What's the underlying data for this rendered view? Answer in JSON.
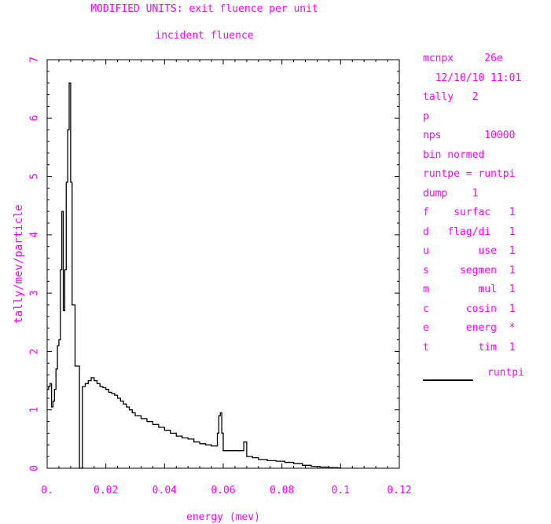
{
  "chart_data": {
    "type": "line",
    "title_lines": [
      "MODIFIED UNITS: exit fluence per unit",
      "incident fluence"
    ],
    "xlabel": "energy (mev)",
    "ylabel": "tally/mev/particle",
    "xlim": [
      0,
      0.12
    ],
    "ylim": [
      0,
      7
    ],
    "xticks": [
      0,
      0.02,
      0.04,
      0.06,
      0.08,
      0.1,
      0.12
    ],
    "xtick_labels": [
      "0.",
      "0.02",
      "0.04",
      "0.06",
      "0.08",
      "0.1",
      "0.12"
    ],
    "yticks": [
      0,
      1,
      2,
      3,
      4,
      5,
      6,
      7
    ],
    "ytick_labels": [
      "0",
      "1",
      "2",
      "3",
      "4",
      "5",
      "6",
      "7"
    ],
    "grid": false,
    "line_color": "#000000",
    "text_color": "#ff00ff",
    "series": [
      {
        "name": "runtpi",
        "step": true,
        "x": [
          0,
          0.0005,
          0.001,
          0.0015,
          0.002,
          0.0025,
          0.003,
          0.0035,
          0.004,
          0.0045,
          0.005,
          0.0055,
          0.006,
          0.0065,
          0.007,
          0.0075,
          0.008,
          0.0085,
          0.009,
          0.0095,
          0.01,
          0.0105,
          0.011,
          0.012,
          0.013,
          0.014,
          0.015,
          0.016,
          0.017,
          0.018,
          0.019,
          0.02,
          0.021,
          0.022,
          0.023,
          0.024,
          0.025,
          0.026,
          0.027,
          0.028,
          0.029,
          0.03,
          0.032,
          0.034,
          0.036,
          0.038,
          0.04,
          0.042,
          0.044,
          0.046,
          0.048,
          0.05,
          0.052,
          0.054,
          0.056,
          0.058,
          0.0585,
          0.059,
          0.0595,
          0.06,
          0.062,
          0.064,
          0.066,
          0.067,
          0.068,
          0.07,
          0.072,
          0.075,
          0.078,
          0.081,
          0.084,
          0.087,
          0.09,
          0.093,
          0.096,
          0.099,
          0.1
        ],
        "y": [
          1.35,
          1.4,
          1.45,
          1.05,
          1.15,
          1.35,
          1.7,
          2.1,
          2.2,
          3.4,
          4.4,
          2.7,
          3.4,
          4.9,
          5.8,
          6.6,
          4.9,
          2.8,
          2.8,
          1.75,
          1.75,
          1.75,
          0,
          1.4,
          1.45,
          1.5,
          1.55,
          1.5,
          1.45,
          1.4,
          1.38,
          1.35,
          1.3,
          1.28,
          1.25,
          1.2,
          1.15,
          1.1,
          1.05,
          1.0,
          0.95,
          0.9,
          0.85,
          0.8,
          0.75,
          0.7,
          0.65,
          0.6,
          0.55,
          0.52,
          0.5,
          0.45,
          0.42,
          0.4,
          0.38,
          0.6,
          0.9,
          0.95,
          0.6,
          0.3,
          0.3,
          0.3,
          0.3,
          0.45,
          0.2,
          0.18,
          0.15,
          0.13,
          0.12,
          0.1,
          0.08,
          0.05,
          0.03,
          0.02,
          0.01,
          0.005,
          0
        ]
      }
    ]
  },
  "info_panel": {
    "lines": [
      "mcnpx     26e",
      "  12/10/10 11:01",
      "tally   2",
      "p",
      "nps       10000",
      "bin normed",
      "runtpe = runtpi",
      "dump    1",
      "f    surfac   1",
      "d   flag/di   1",
      "u        use  1",
      "s     segmen  1",
      "m        mul  1",
      "c      cosin  1",
      "e      energ  *",
      "t        tim  1"
    ],
    "legend_label": "runtpi"
  }
}
